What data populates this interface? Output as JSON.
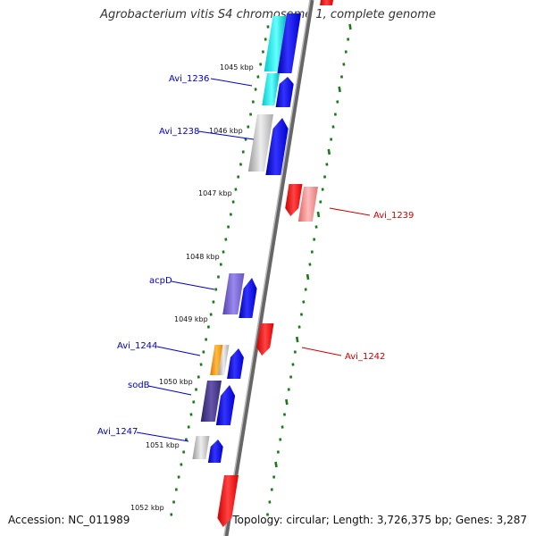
{
  "title": "Agrobacterium vitis S4 chromosome 1, complete genome",
  "accession": "Accession: NC_011989",
  "topology": "Topology: circular; Length: 3,726,375 bp; Genes: 3,287",
  "colors": {
    "forward_label": "#0000cc",
    "reverse_label": "#cc0000",
    "tick": "#1a7a1a",
    "backbone": "#888888"
  },
  "kbp_labels": [
    "1045 kbp",
    "1046 kbp",
    "1047 kbp",
    "1048 kbp",
    "1049 kbp",
    "1050 kbp",
    "1051 kbp",
    "1052 kbp"
  ],
  "forward_gene_labels": [
    "Avi_1236",
    "Avi_1238",
    "acpD",
    "Avi_1244",
    "sodB",
    "Avi_1247"
  ],
  "reverse_gene_labels": [
    "Avi_1239",
    "Avi_1242"
  ]
}
